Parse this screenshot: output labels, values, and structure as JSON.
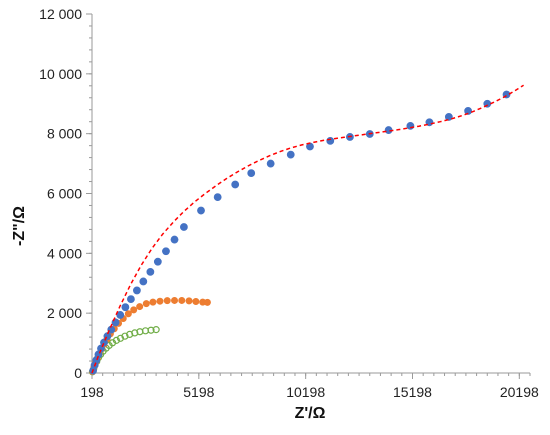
{
  "chart_data": {
    "type": "scatter",
    "title": "",
    "xlabel": "Z'/Ω",
    "ylabel": "-Z\"/Ω",
    "xlim": [
      198,
      20698
    ],
    "ylim": [
      0,
      12000
    ],
    "x_ticks": [
      198,
      5198,
      10198,
      15198,
      20198
    ],
    "x_tick_labels": [
      "198",
      "5198",
      "10198",
      "15198",
      "20198"
    ],
    "y_ticks": [
      0,
      2000,
      4000,
      6000,
      8000,
      10000,
      12000
    ],
    "y_tick_labels": [
      "0",
      "2 000",
      "4 000",
      "6 000",
      "8 000",
      "10 000",
      "12 000"
    ],
    "grid": false,
    "legend": "none",
    "series": [
      {
        "color": "#4472c4",
        "marker": "filled-circle",
        "points": [
          [
            250,
            80
          ],
          [
            320,
            260
          ],
          [
            400,
            430
          ],
          [
            500,
            620
          ],
          [
            620,
            820
          ],
          [
            760,
            1020
          ],
          [
            920,
            1230
          ],
          [
            1100,
            1450
          ],
          [
            1300,
            1690
          ],
          [
            1520,
            1940
          ],
          [
            1760,
            2200
          ],
          [
            2020,
            2470
          ],
          [
            2300,
            2760
          ],
          [
            2600,
            3060
          ],
          [
            2930,
            3380
          ],
          [
            3280,
            3720
          ],
          [
            3660,
            4070
          ],
          [
            4060,
            4460
          ],
          [
            4500,
            4880
          ],
          [
            5300,
            5430
          ],
          [
            6080,
            5880
          ],
          [
            6900,
            6300
          ],
          [
            7650,
            6680
          ],
          [
            8560,
            7000
          ],
          [
            9500,
            7300
          ],
          [
            10400,
            7570
          ],
          [
            11350,
            7760
          ],
          [
            12270,
            7890
          ],
          [
            13200,
            7990
          ],
          [
            14080,
            8120
          ],
          [
            15100,
            8260
          ],
          [
            15990,
            8380
          ],
          [
            16900,
            8560
          ],
          [
            17800,
            8760
          ],
          [
            18700,
            9000
          ],
          [
            19600,
            9310
          ]
        ]
      },
      {
        "color": "#ed7d31",
        "marker": "filled-circle",
        "points": [
          [
            230,
            50
          ],
          [
            290,
            200
          ],
          [
            360,
            340
          ],
          [
            440,
            480
          ],
          [
            530,
            630
          ],
          [
            640,
            800
          ],
          [
            760,
            960
          ],
          [
            900,
            1130
          ],
          [
            1060,
            1310
          ],
          [
            1240,
            1480
          ],
          [
            1440,
            1660
          ],
          [
            1660,
            1820
          ],
          [
            1900,
            1980
          ],
          [
            2150,
            2110
          ],
          [
            2430,
            2220
          ],
          [
            2740,
            2320
          ],
          [
            3050,
            2370
          ],
          [
            3380,
            2400
          ],
          [
            3720,
            2420
          ],
          [
            4060,
            2425
          ],
          [
            4400,
            2425
          ],
          [
            4740,
            2410
          ],
          [
            5060,
            2390
          ],
          [
            5380,
            2370
          ],
          [
            5600,
            2360
          ]
        ]
      },
      {
        "color": "#70ad47",
        "marker": "open-circle",
        "points": [
          [
            220,
            40
          ],
          [
            280,
            150
          ],
          [
            340,
            270
          ],
          [
            420,
            390
          ],
          [
            500,
            510
          ],
          [
            600,
            620
          ],
          [
            720,
            730
          ],
          [
            860,
            830
          ],
          [
            1000,
            920
          ],
          [
            1160,
            1010
          ],
          [
            1340,
            1090
          ],
          [
            1530,
            1160
          ],
          [
            1740,
            1230
          ],
          [
            1960,
            1290
          ],
          [
            2200,
            1340
          ],
          [
            2440,
            1380
          ],
          [
            2700,
            1410
          ],
          [
            2960,
            1430
          ],
          [
            3200,
            1450
          ]
        ]
      }
    ],
    "fit_line": {
      "color": "#ff0000",
      "style": "dashed",
      "points": [
        [
          198,
          0
        ],
        [
          500,
          580
        ],
        [
          1000,
          1420
        ],
        [
          1500,
          2220
        ],
        [
          2000,
          2950
        ],
        [
          2500,
          3600
        ],
        [
          3000,
          4160
        ],
        [
          3500,
          4640
        ],
        [
          4000,
          5040
        ],
        [
          4500,
          5400
        ],
        [
          5000,
          5720
        ],
        [
          5500,
          6000
        ],
        [
          6000,
          6260
        ],
        [
          6500,
          6500
        ],
        [
          7000,
          6720
        ],
        [
          7500,
          6920
        ],
        [
          8000,
          7100
        ],
        [
          8500,
          7260
        ],
        [
          9000,
          7400
        ],
        [
          9500,
          7520
        ],
        [
          10000,
          7620
        ],
        [
          10500,
          7700
        ],
        [
          11000,
          7770
        ],
        [
          11500,
          7830
        ],
        [
          12000,
          7880
        ],
        [
          12500,
          7930
        ],
        [
          13000,
          7980
        ],
        [
          13500,
          8030
        ],
        [
          14000,
          8080
        ],
        [
          14500,
          8130
        ],
        [
          15000,
          8190
        ],
        [
          15500,
          8250
        ],
        [
          16000,
          8320
        ],
        [
          16500,
          8400
        ],
        [
          17000,
          8490
        ],
        [
          17500,
          8600
        ],
        [
          18000,
          8730
        ],
        [
          18500,
          8880
        ],
        [
          19000,
          9050
        ],
        [
          19500,
          9230
        ],
        [
          20000,
          9440
        ],
        [
          20400,
          9620
        ]
      ]
    }
  }
}
